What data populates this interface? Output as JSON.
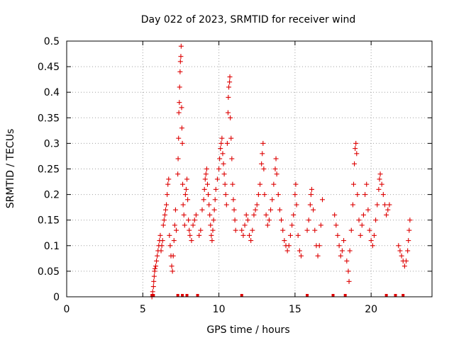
{
  "chart_data": {
    "type": "scatter",
    "title": "Day 022 of 2023, SRMTID for receiver wind",
    "xlabel": "GPS time / hours",
    "ylabel": "SRMTID / TECUs",
    "xlim": [
      0,
      24
    ],
    "ylim": [
      0,
      0.5
    ],
    "xticks": [
      0,
      5,
      10,
      15,
      20
    ],
    "xtick_labels": [
      "0",
      "5",
      "10",
      "15",
      "20"
    ],
    "yticks": [
      0,
      0.05,
      0.1,
      0.15,
      0.2,
      0.25,
      0.3,
      0.35,
      0.4,
      0.45,
      0.5
    ],
    "ytick_labels": [
      "0",
      "0.05",
      "0.1",
      "0.15",
      "0.2",
      "0.25",
      "0.3",
      "0.35",
      "0.4",
      "0.45",
      "0.5"
    ],
    "grid": true,
    "legend": "none",
    "marker": "+",
    "color": "#dd0000",
    "series": [
      {
        "marker": "+",
        "points": [
          [
            5.6,
            0.0
          ],
          [
            5.65,
            0.01
          ],
          [
            5.7,
            0.02
          ],
          [
            5.72,
            0.03
          ],
          [
            5.75,
            0.04
          ],
          [
            5.78,
            0.05
          ],
          [
            5.8,
            0.055
          ],
          [
            5.85,
            0.06
          ],
          [
            5.9,
            0.07
          ],
          [
            5.95,
            0.08
          ],
          [
            6.0,
            0.09
          ],
          [
            6.05,
            0.1
          ],
          [
            6.1,
            0.11
          ],
          [
            6.15,
            0.12
          ],
          [
            6.2,
            0.09
          ],
          [
            6.25,
            0.1
          ],
          [
            6.3,
            0.11
          ],
          [
            6.35,
            0.14
          ],
          [
            6.4,
            0.15
          ],
          [
            6.45,
            0.16
          ],
          [
            6.5,
            0.17
          ],
          [
            6.55,
            0.18
          ],
          [
            6.6,
            0.2
          ],
          [
            6.65,
            0.22
          ],
          [
            6.7,
            0.23
          ],
          [
            6.75,
            0.12
          ],
          [
            6.8,
            0.1
          ],
          [
            6.85,
            0.08
          ],
          [
            6.9,
            0.06
          ],
          [
            6.95,
            0.05
          ],
          [
            7.0,
            0.08
          ],
          [
            7.05,
            0.11
          ],
          [
            7.1,
            0.14
          ],
          [
            7.15,
            0.17
          ],
          [
            7.2,
            0.13
          ],
          [
            7.3,
            0.24
          ],
          [
            7.32,
            0.27
          ],
          [
            7.35,
            0.31
          ],
          [
            7.37,
            0.36
          ],
          [
            7.4,
            0.38
          ],
          [
            7.42,
            0.41
          ],
          [
            7.45,
            0.44
          ],
          [
            7.47,
            0.46
          ],
          [
            7.5,
            0.47
          ],
          [
            7.52,
            0.49
          ],
          [
            7.55,
            0.37
          ],
          [
            7.57,
            0.33
          ],
          [
            7.6,
            0.3
          ],
          [
            7.62,
            0.22
          ],
          [
            7.65,
            0.18
          ],
          [
            7.7,
            0.16
          ],
          [
            7.75,
            0.14
          ],
          [
            7.8,
            0.2
          ],
          [
            7.85,
            0.21
          ],
          [
            7.9,
            0.23
          ],
          [
            7.95,
            0.19
          ],
          [
            8.0,
            0.15
          ],
          [
            8.05,
            0.13
          ],
          [
            8.1,
            0.12
          ],
          [
            8.2,
            0.11
          ],
          [
            8.3,
            0.14
          ],
          [
            8.4,
            0.15
          ],
          [
            8.5,
            0.16
          ],
          [
            8.7,
            0.12
          ],
          [
            8.8,
            0.13
          ],
          [
            8.9,
            0.17
          ],
          [
            9.0,
            0.19
          ],
          [
            9.05,
            0.21
          ],
          [
            9.1,
            0.23
          ],
          [
            9.15,
            0.24
          ],
          [
            9.2,
            0.25
          ],
          [
            9.25,
            0.22
          ],
          [
            9.3,
            0.2
          ],
          [
            9.35,
            0.18
          ],
          [
            9.4,
            0.16
          ],
          [
            9.45,
            0.14
          ],
          [
            9.5,
            0.12
          ],
          [
            9.55,
            0.11
          ],
          [
            9.6,
            0.13
          ],
          [
            9.65,
            0.15
          ],
          [
            9.7,
            0.17
          ],
          [
            9.75,
            0.19
          ],
          [
            9.8,
            0.21
          ],
          [
            9.9,
            0.23
          ],
          [
            10.0,
            0.25
          ],
          [
            10.05,
            0.27
          ],
          [
            10.1,
            0.29
          ],
          [
            10.15,
            0.3
          ],
          [
            10.2,
            0.31
          ],
          [
            10.25,
            0.28
          ],
          [
            10.3,
            0.26
          ],
          [
            10.35,
            0.24
          ],
          [
            10.4,
            0.22
          ],
          [
            10.45,
            0.2
          ],
          [
            10.5,
            0.18
          ],
          [
            10.55,
            0.3
          ],
          [
            10.6,
            0.36
          ],
          [
            10.62,
            0.39
          ],
          [
            10.65,
            0.41
          ],
          [
            10.7,
            0.42
          ],
          [
            10.72,
            0.43
          ],
          [
            10.75,
            0.35
          ],
          [
            10.8,
            0.31
          ],
          [
            10.85,
            0.27
          ],
          [
            10.9,
            0.22
          ],
          [
            10.95,
            0.19
          ],
          [
            11.0,
            0.17
          ],
          [
            11.05,
            0.15
          ],
          [
            11.1,
            0.13
          ],
          [
            11.5,
            0.13
          ],
          [
            11.6,
            0.12
          ],
          [
            11.7,
            0.14
          ],
          [
            11.8,
            0.16
          ],
          [
            11.9,
            0.15
          ],
          [
            12.0,
            0.12
          ],
          [
            12.1,
            0.11
          ],
          [
            12.2,
            0.13
          ],
          [
            12.3,
            0.16
          ],
          [
            12.4,
            0.17
          ],
          [
            12.5,
            0.18
          ],
          [
            12.6,
            0.2
          ],
          [
            12.7,
            0.22
          ],
          [
            12.8,
            0.26
          ],
          [
            12.85,
            0.28
          ],
          [
            12.9,
            0.3
          ],
          [
            12.95,
            0.25
          ],
          [
            13.0,
            0.2
          ],
          [
            13.1,
            0.16
          ],
          [
            13.2,
            0.14
          ],
          [
            13.3,
            0.15
          ],
          [
            13.4,
            0.17
          ],
          [
            13.5,
            0.19
          ],
          [
            13.6,
            0.22
          ],
          [
            13.7,
            0.25
          ],
          [
            13.75,
            0.27
          ],
          [
            13.8,
            0.24
          ],
          [
            13.9,
            0.2
          ],
          [
            14.0,
            0.17
          ],
          [
            14.1,
            0.15
          ],
          [
            14.2,
            0.13
          ],
          [
            14.3,
            0.11
          ],
          [
            14.4,
            0.1
          ],
          [
            14.5,
            0.09
          ],
          [
            14.6,
            0.1
          ],
          [
            14.7,
            0.12
          ],
          [
            14.8,
            0.14
          ],
          [
            14.9,
            0.16
          ],
          [
            15.0,
            0.2
          ],
          [
            15.05,
            0.22
          ],
          [
            15.1,
            0.18
          ],
          [
            15.2,
            0.12
          ],
          [
            15.3,
            0.09
          ],
          [
            15.4,
            0.08
          ],
          [
            15.8,
            0.13
          ],
          [
            15.9,
            0.15
          ],
          [
            16.0,
            0.18
          ],
          [
            16.05,
            0.2
          ],
          [
            16.1,
            0.21
          ],
          [
            16.2,
            0.17
          ],
          [
            16.3,
            0.13
          ],
          [
            16.4,
            0.1
          ],
          [
            16.5,
            0.08
          ],
          [
            16.6,
            0.1
          ],
          [
            16.7,
            0.14
          ],
          [
            16.8,
            0.19
          ],
          [
            17.6,
            0.16
          ],
          [
            17.7,
            0.14
          ],
          [
            17.8,
            0.12
          ],
          [
            17.9,
            0.1
          ],
          [
            18.0,
            0.08
          ],
          [
            18.1,
            0.09
          ],
          [
            18.2,
            0.11
          ],
          [
            18.4,
            0.07
          ],
          [
            18.5,
            0.05
          ],
          [
            18.55,
            0.03
          ],
          [
            18.6,
            0.09
          ],
          [
            18.7,
            0.13
          ],
          [
            18.8,
            0.18
          ],
          [
            18.85,
            0.22
          ],
          [
            18.9,
            0.26
          ],
          [
            18.95,
            0.29
          ],
          [
            19.0,
            0.3
          ],
          [
            19.05,
            0.28
          ],
          [
            19.1,
            0.2
          ],
          [
            19.2,
            0.15
          ],
          [
            19.3,
            0.12
          ],
          [
            19.4,
            0.14
          ],
          [
            19.5,
            0.16
          ],
          [
            19.6,
            0.2
          ],
          [
            19.7,
            0.22
          ],
          [
            19.8,
            0.17
          ],
          [
            19.9,
            0.13
          ],
          [
            20.0,
            0.11
          ],
          [
            20.1,
            0.1
          ],
          [
            20.2,
            0.12
          ],
          [
            20.3,
            0.15
          ],
          [
            20.4,
            0.18
          ],
          [
            20.5,
            0.21
          ],
          [
            20.55,
            0.23
          ],
          [
            20.6,
            0.24
          ],
          [
            20.7,
            0.22
          ],
          [
            20.8,
            0.2
          ],
          [
            20.9,
            0.18
          ],
          [
            21.0,
            0.16
          ],
          [
            21.1,
            0.17
          ],
          [
            21.2,
            0.18
          ],
          [
            21.8,
            0.1
          ],
          [
            21.9,
            0.09
          ],
          [
            22.0,
            0.08
          ],
          [
            22.1,
            0.07
          ],
          [
            22.2,
            0.06
          ],
          [
            22.3,
            0.07
          ],
          [
            22.4,
            0.09
          ],
          [
            22.45,
            0.11
          ],
          [
            22.5,
            0.13
          ],
          [
            22.55,
            0.15
          ]
        ]
      }
    ],
    "zero_markers_x": [
      5.6,
      5.7,
      7.3,
      7.6,
      7.9,
      8.6,
      11.5,
      15.8,
      17.5,
      18.3,
      21.0,
      21.6,
      22.1
    ]
  }
}
